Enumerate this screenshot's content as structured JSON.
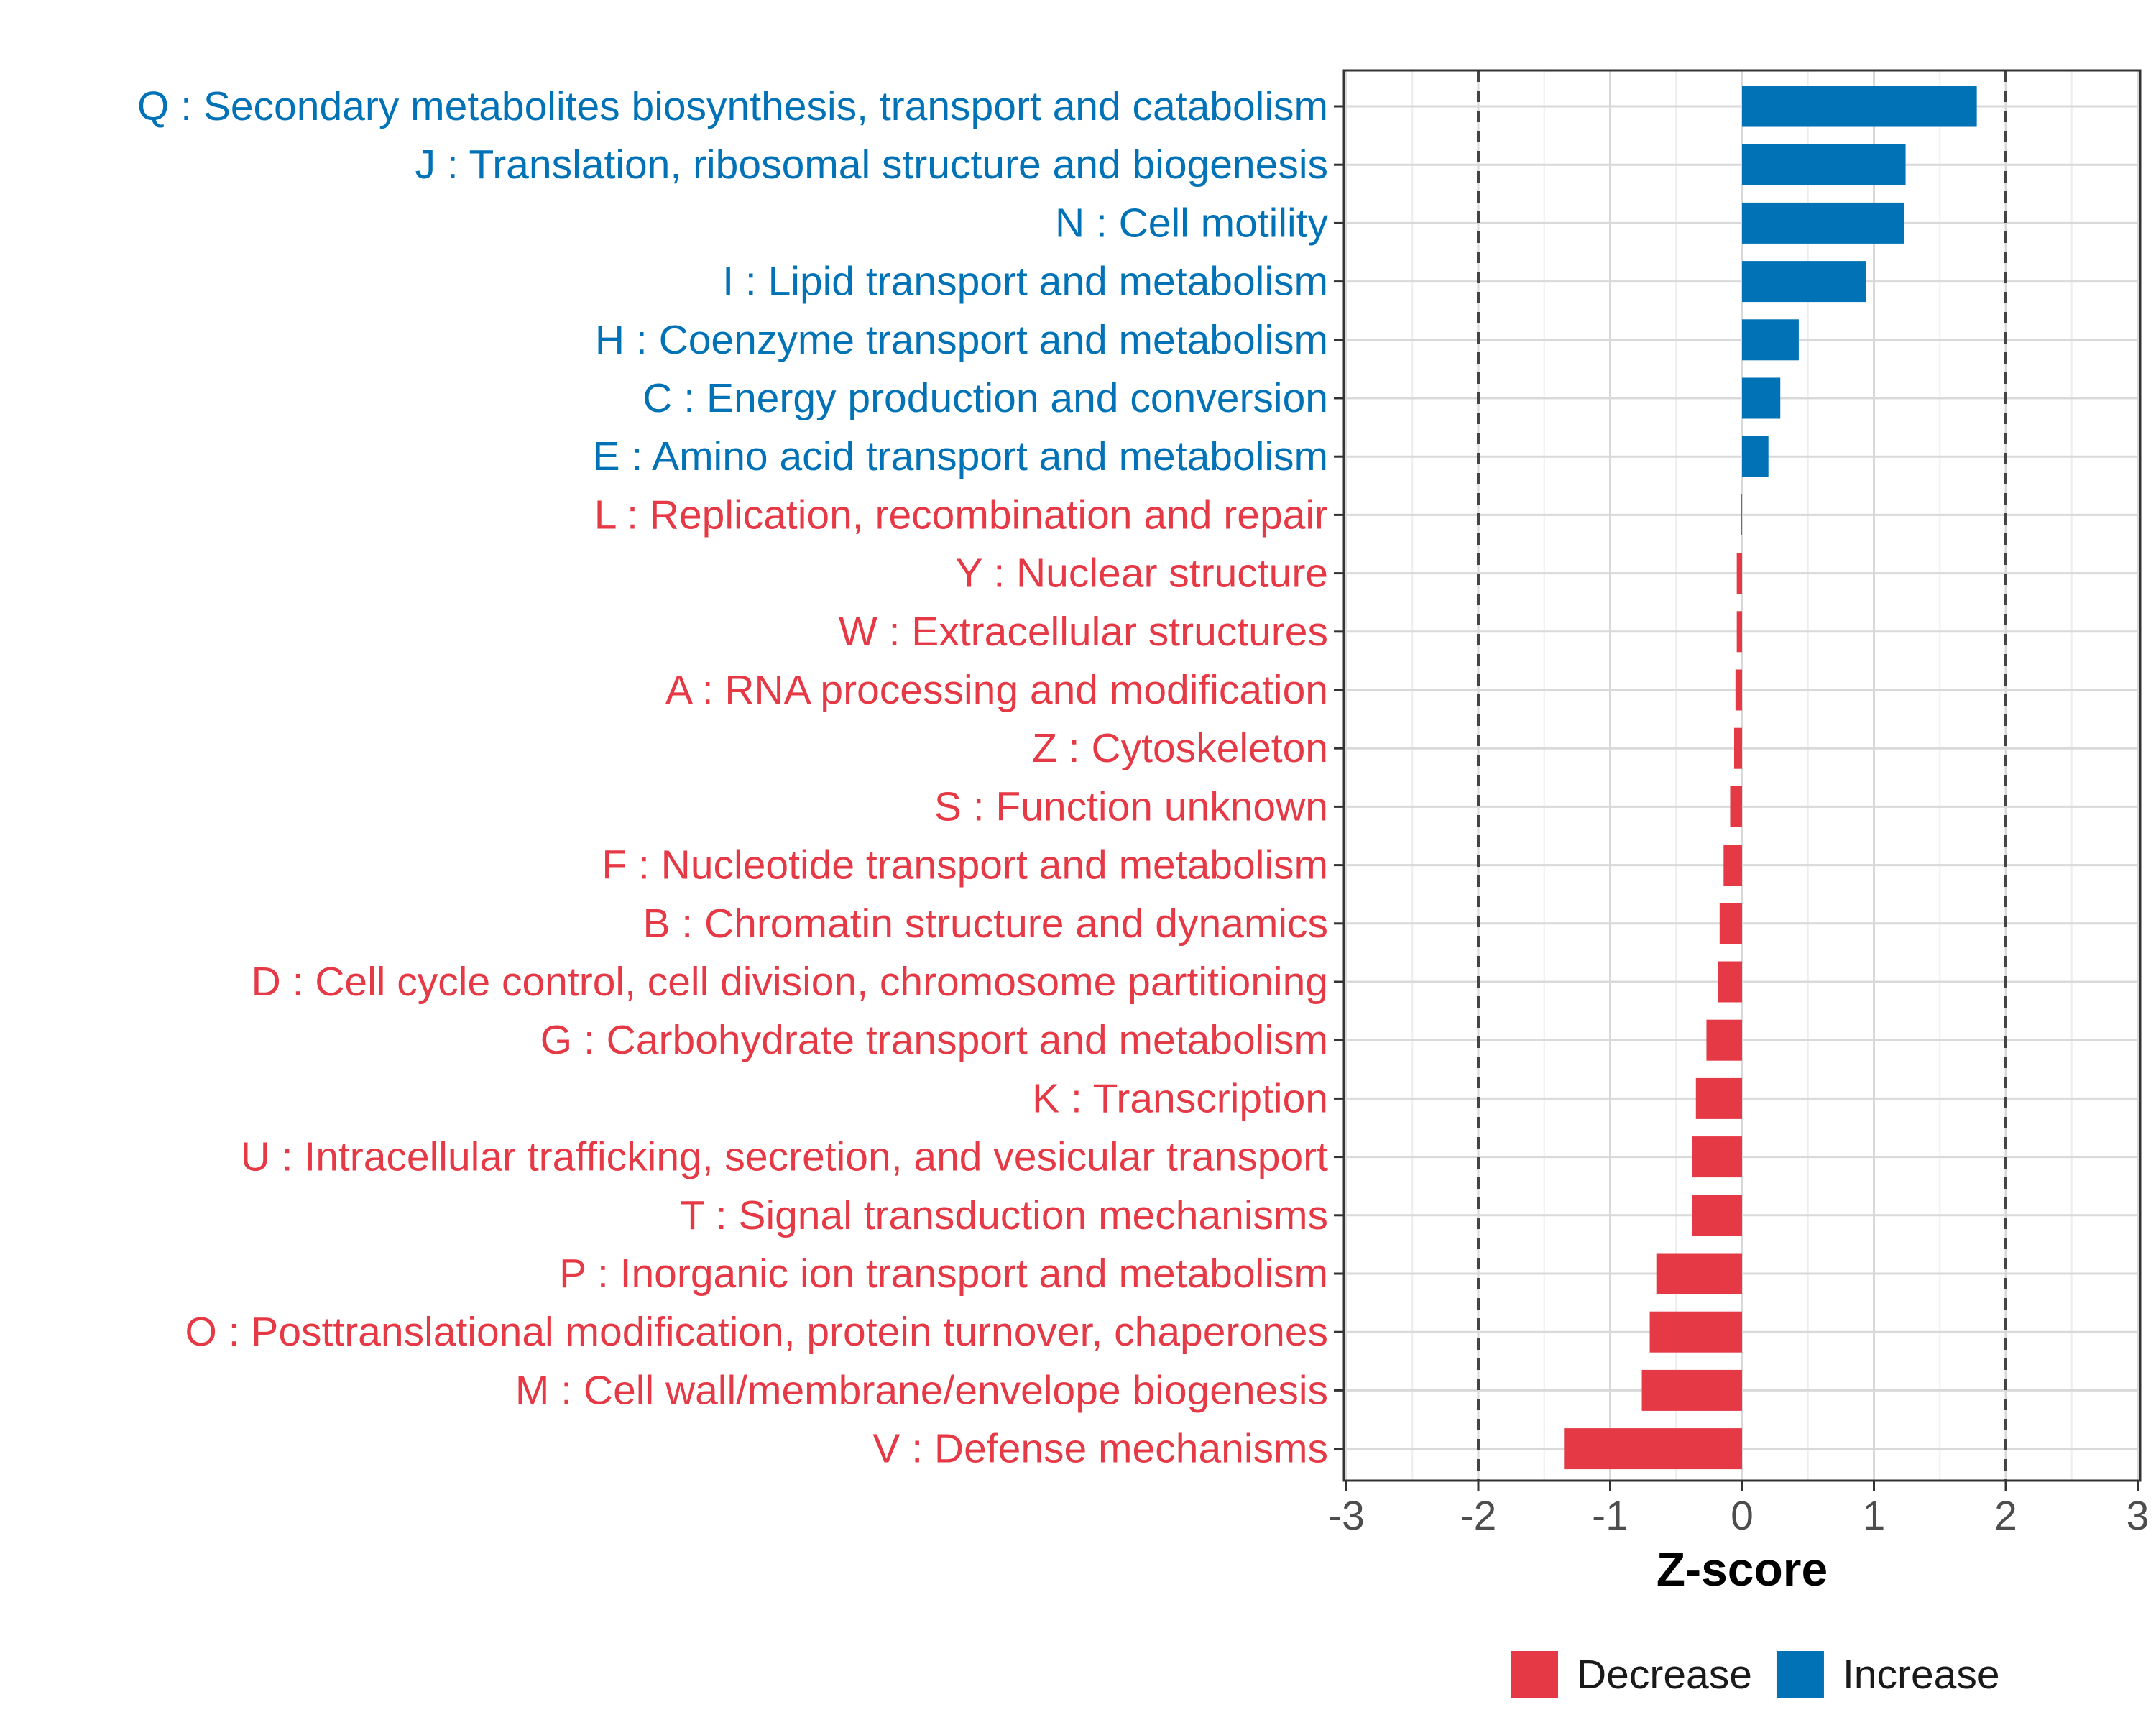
{
  "chart_data": {
    "type": "bar",
    "orientation": "horizontal",
    "title": "",
    "xlabel": "Z-score",
    "ylabel": "",
    "xlim": [
      -3,
      3
    ],
    "xticks": [
      "-3",
      "-2",
      "-1",
      "0",
      "1",
      "2",
      "3"
    ],
    "tick_values": [
      -3,
      -2,
      -1,
      0,
      1,
      2,
      3
    ],
    "reference_lines": [
      -2,
      2
    ],
    "grid": true,
    "colors": {
      "Increase": "#0072B5",
      "Decrease": "#E63946"
    },
    "categories": [
      "Q : Secondary metabolites biosynthesis, transport and catabolism",
      "J : Translation, ribosomal structure and biogenesis",
      "N : Cell motility",
      "I : Lipid transport and metabolism",
      "H : Coenzyme transport and metabolism",
      "C : Energy production and conversion",
      "E : Amino acid transport and metabolism",
      "L : Replication, recombination and repair",
      "Y : Nuclear structure",
      "W : Extracellular structures",
      "A : RNA processing and modification",
      "Z : Cytoskeleton",
      "S : Function unknown",
      "F : Nucleotide transport and metabolism",
      "B : Chromatin structure and dynamics",
      "D : Cell cycle control, cell division, chromosome partitioning",
      "G : Carbohydrate transport and metabolism",
      "K : Transcription",
      "U : Intracellular trafficking, secretion, and vesicular transport",
      "T : Signal transduction mechanisms",
      "P : Inorganic ion transport and metabolism",
      "O : Posttranslational modification, protein turnover, chaperones",
      "M : Cell wall/membrane/envelope biogenesis",
      "V : Defense mechanisms"
    ],
    "values": [
      1.78,
      1.24,
      1.23,
      0.94,
      0.43,
      0.29,
      0.2,
      -0.01,
      -0.04,
      -0.04,
      -0.05,
      -0.06,
      -0.09,
      -0.14,
      -0.17,
      -0.18,
      -0.27,
      -0.35,
      -0.38,
      -0.38,
      -0.65,
      -0.7,
      -0.76,
      -1.35
    ],
    "groups": [
      "Increase",
      "Increase",
      "Increase",
      "Increase",
      "Increase",
      "Increase",
      "Increase",
      "Decrease",
      "Decrease",
      "Decrease",
      "Decrease",
      "Decrease",
      "Decrease",
      "Decrease",
      "Decrease",
      "Decrease",
      "Decrease",
      "Decrease",
      "Decrease",
      "Decrease",
      "Decrease",
      "Decrease",
      "Decrease",
      "Decrease"
    ],
    "legend": {
      "placement": "bottom",
      "entries": [
        {
          "label": "Decrease",
          "color": "#E63946"
        },
        {
          "label": "Increase",
          "color": "#0072B5"
        }
      ]
    }
  }
}
